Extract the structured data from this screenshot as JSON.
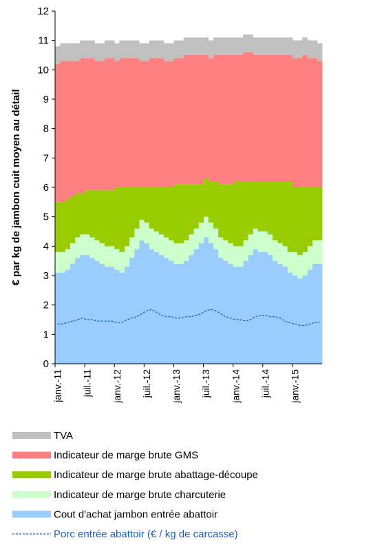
{
  "chart_data": {
    "type": "stacked_area",
    "y_label": "€ par kg de jambon cuit moyen au détail",
    "ylim": [
      0,
      12
    ],
    "yticks": [
      0,
      1,
      2,
      3,
      4,
      5,
      6,
      7,
      8,
      9,
      10,
      11,
      12
    ],
    "categories": [
      "janv.-11",
      null,
      null,
      null,
      null,
      null,
      "juil.-11",
      null,
      null,
      null,
      null,
      null,
      "janv.-12",
      null,
      null,
      null,
      null,
      null,
      "juil.-12",
      null,
      null,
      null,
      null,
      null,
      "janv.-13",
      null,
      null,
      null,
      null,
      null,
      "juil.-13",
      null,
      null,
      null,
      null,
      null,
      "janv.-14",
      null,
      null,
      null,
      null,
      null,
      "juil.-14",
      null,
      null,
      null,
      null,
      null,
      "janv.-15",
      null,
      null,
      null,
      null,
      null
    ],
    "series": [
      {
        "name": "Cout d'achat jambon entrée abattoir",
        "color": "#99ccff",
        "values": [
          3.1,
          3.1,
          3.2,
          3.4,
          3.6,
          3.7,
          3.7,
          3.6,
          3.5,
          3.4,
          3.3,
          3.3,
          3.2,
          3.1,
          3.3,
          3.6,
          3.9,
          4.2,
          4.1,
          3.9,
          3.8,
          3.7,
          3.6,
          3.5,
          3.4,
          3.4,
          3.5,
          3.7,
          3.9,
          4.1,
          4.3,
          4.1,
          3.9,
          3.6,
          3.5,
          3.4,
          3.3,
          3.3,
          3.5,
          3.7,
          3.9,
          3.8,
          3.8,
          3.7,
          3.5,
          3.4,
          3.3,
          3.1,
          3.0,
          2.9,
          3.0,
          3.2,
          3.4,
          3.4
        ]
      },
      {
        "name": "Indicateur de marge brute charcuterie",
        "color": "#ccffcc",
        "values": [
          0.7,
          0.7,
          0.7,
          0.7,
          0.7,
          0.7,
          0.7,
          0.7,
          0.7,
          0.7,
          0.7,
          0.7,
          0.7,
          0.7,
          0.7,
          0.7,
          0.7,
          0.7,
          0.7,
          0.7,
          0.7,
          0.7,
          0.7,
          0.7,
          0.7,
          0.7,
          0.7,
          0.7,
          0.7,
          0.7,
          0.7,
          0.7,
          0.7,
          0.7,
          0.7,
          0.7,
          0.7,
          0.7,
          0.7,
          0.7,
          0.7,
          0.7,
          0.7,
          0.7,
          0.7,
          0.7,
          0.7,
          0.7,
          0.8,
          0.8,
          0.8,
          0.8,
          0.8,
          0.8
        ]
      },
      {
        "name": "Indicateur de marge brute abattage-découpe",
        "color": "#99cc00",
        "values": [
          1.7,
          1.7,
          1.7,
          1.6,
          1.5,
          1.4,
          1.5,
          1.6,
          1.7,
          1.8,
          1.9,
          1.9,
          2.1,
          2.2,
          2.0,
          1.7,
          1.4,
          1.1,
          1.2,
          1.4,
          1.5,
          1.6,
          1.7,
          1.8,
          2.0,
          2.0,
          1.9,
          1.7,
          1.5,
          1.3,
          1.3,
          1.4,
          1.6,
          1.8,
          1.9,
          2.0,
          2.2,
          2.2,
          2.0,
          1.8,
          1.6,
          1.7,
          1.7,
          1.8,
          2.0,
          2.1,
          2.2,
          2.4,
          2.2,
          2.3,
          2.2,
          2.0,
          1.8,
          1.8
        ]
      },
      {
        "name": "Indicateur de marge brute GMS",
        "color": "#ff8080",
        "values": [
          4.7,
          4.8,
          4.7,
          4.6,
          4.5,
          4.6,
          4.5,
          4.5,
          4.4,
          4.4,
          4.5,
          4.5,
          4.3,
          4.4,
          4.4,
          4.4,
          4.4,
          4.3,
          4.3,
          4.4,
          4.4,
          4.4,
          4.3,
          4.3,
          4.3,
          4.3,
          4.4,
          4.4,
          4.4,
          4.4,
          4.2,
          4.2,
          4.3,
          4.4,
          4.4,
          4.4,
          4.3,
          4.3,
          4.4,
          4.4,
          4.3,
          4.3,
          4.3,
          4.3,
          4.3,
          4.3,
          4.3,
          4.3,
          4.4,
          4.4,
          4.5,
          4.4,
          4.4,
          4.3
        ]
      },
      {
        "name": "TVA",
        "color": "#c0c0c0",
        "values": [
          0.6,
          0.6,
          0.6,
          0.6,
          0.6,
          0.6,
          0.6,
          0.6,
          0.6,
          0.6,
          0.6,
          0.6,
          0.6,
          0.6,
          0.6,
          0.6,
          0.6,
          0.6,
          0.6,
          0.6,
          0.6,
          0.6,
          0.6,
          0.6,
          0.6,
          0.6,
          0.6,
          0.6,
          0.6,
          0.6,
          0.6,
          0.6,
          0.6,
          0.6,
          0.6,
          0.6,
          0.6,
          0.6,
          0.6,
          0.6,
          0.6,
          0.6,
          0.6,
          0.6,
          0.6,
          0.6,
          0.6,
          0.6,
          0.6,
          0.6,
          0.6,
          0.6,
          0.6,
          0.6
        ]
      },
      {
        "name": "Porc entrée abattoir (€ / kg de carcasse)",
        "color": "#1a5fc8",
        "type": "line",
        "dashed": true,
        "values": [
          1.35,
          1.35,
          1.4,
          1.45,
          1.5,
          1.55,
          1.5,
          1.5,
          1.45,
          1.45,
          1.45,
          1.45,
          1.4,
          1.4,
          1.5,
          1.55,
          1.6,
          1.7,
          1.8,
          1.85,
          1.75,
          1.65,
          1.6,
          1.6,
          1.55,
          1.55,
          1.6,
          1.6,
          1.65,
          1.7,
          1.8,
          1.85,
          1.8,
          1.7,
          1.6,
          1.55,
          1.5,
          1.5,
          1.45,
          1.5,
          1.6,
          1.65,
          1.65,
          1.6,
          1.6,
          1.55,
          1.45,
          1.4,
          1.35,
          1.3,
          1.3,
          1.35,
          1.4,
          1.4
        ]
      }
    ]
  }
}
